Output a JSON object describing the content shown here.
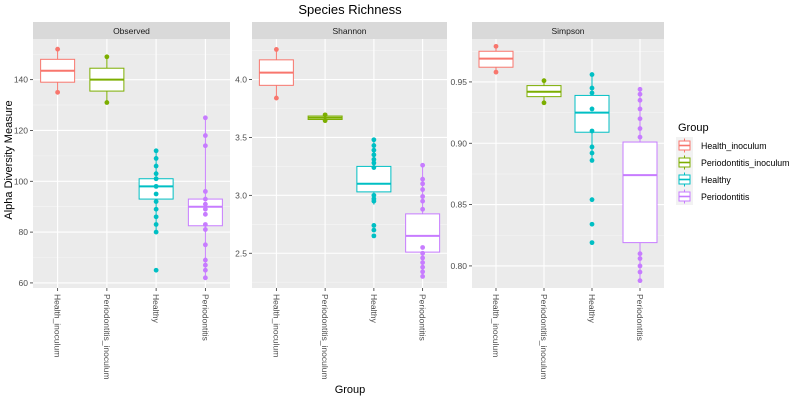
{
  "chart_data": {
    "type": "box",
    "title": "Species Richness",
    "xlabel": "Group",
    "ylabel": "Alpha Diversity Measure",
    "categories": [
      "Health_inoculum",
      "Periodontitis_inoculum",
      "Healthy",
      "Periodontitis"
    ],
    "legend": {
      "title": "Group",
      "placement": "right",
      "entries": [
        {
          "label": "Health_inoculum",
          "color": "#F8766D"
        },
        {
          "label": "Periodontitis_inoculum",
          "color": "#7CAE00"
        },
        {
          "label": "Healthy",
          "color": "#00BFC4"
        },
        {
          "label": "Periodontitis",
          "color": "#C77CFF"
        }
      ]
    },
    "grid": true,
    "panels": [
      {
        "name": "Observed",
        "ylim": [
          58,
          156
        ],
        "yticks": [
          60,
          80,
          100,
          120,
          140
        ],
        "boxes": [
          {
            "category": "Health_inoculum",
            "q1": 139,
            "median": 143.5,
            "q3": 148,
            "whisker_low": 135,
            "whisker_high": 152,
            "points": [
              152,
              135
            ]
          },
          {
            "category": "Periodontitis_inoculum",
            "q1": 135.5,
            "median": 140,
            "q3": 144.5,
            "whisker_low": 131,
            "whisker_high": 149,
            "points": [
              149,
              131
            ]
          },
          {
            "category": "Healthy",
            "q1": 93,
            "median": 98,
            "q3": 101,
            "whisker_low": 80,
            "whisker_high": 112,
            "points": [
              112,
              109,
              106,
              103,
              101,
              98,
              95,
              92,
              89,
              86,
              83,
              80,
              65
            ]
          },
          {
            "category": "Periodontitis",
            "q1": 82.5,
            "median": 90,
            "q3": 93,
            "whisker_low": 62,
            "whisker_high": 125,
            "points": [
              125,
              118,
              114,
              96,
              93,
              91,
              89,
              87,
              83,
              81,
              75,
              69,
              67,
              65,
              62
            ]
          }
        ]
      },
      {
        "name": "Shannon",
        "ylim": [
          2.2,
          4.35
        ],
        "yticks": [
          2.5,
          3.0,
          3.5,
          4.0
        ],
        "boxes": [
          {
            "category": "Health_inoculum",
            "q1": 3.95,
            "median": 4.06,
            "q3": 4.17,
            "whisker_low": 3.84,
            "whisker_high": 4.26,
            "points": [
              4.26,
              3.84
            ]
          },
          {
            "category": "Periodontitis_inoculum",
            "q1": 3.655,
            "median": 3.67,
            "q3": 3.685,
            "whisker_low": 3.645,
            "whisker_high": 3.695,
            "points": [
              3.695,
              3.645
            ]
          },
          {
            "category": "Healthy",
            "q1": 3.03,
            "median": 3.1,
            "q3": 3.25,
            "whisker_low": 2.92,
            "whisker_high": 3.48,
            "points": [
              3.48,
              3.43,
              3.39,
              3.35,
              3.31,
              3.28,
              3.24,
              3.0,
              2.97,
              2.95,
              2.74,
              2.7,
              2.65
            ]
          },
          {
            "category": "Periodontitis",
            "q1": 2.51,
            "median": 2.65,
            "q3": 2.84,
            "whisker_low": 2.3,
            "whisker_high": 3.26,
            "points": [
              3.26,
              3.14,
              3.1,
              3.05,
              2.99,
              2.95,
              2.88,
              2.55,
              2.5,
              2.46,
              2.42,
              2.38,
              2.34,
              2.3
            ]
          }
        ]
      },
      {
        "name": "Simpson",
        "ylim": [
          0.782,
          0.985
        ],
        "yticks": [
          0.8,
          0.85,
          0.9,
          0.95
        ],
        "boxes": [
          {
            "category": "Health_inoculum",
            "q1": 0.962,
            "median": 0.969,
            "q3": 0.975,
            "whisker_low": 0.958,
            "whisker_high": 0.979,
            "points": [
              0.979,
              0.958
            ]
          },
          {
            "category": "Periodontitis_inoculum",
            "q1": 0.938,
            "median": 0.942,
            "q3": 0.947,
            "whisker_low": 0.933,
            "whisker_high": 0.951,
            "points": [
              0.951,
              0.933
            ]
          },
          {
            "category": "Healthy",
            "q1": 0.909,
            "median": 0.925,
            "q3": 0.939,
            "whisker_low": 0.886,
            "whisker_high": 0.956,
            "points": [
              0.956,
              0.945,
              0.941,
              0.928,
              0.91,
              0.897,
              0.892,
              0.886,
              0.854,
              0.834,
              0.819
            ]
          },
          {
            "category": "Periodontitis",
            "q1": 0.819,
            "median": 0.874,
            "q3": 0.901,
            "whisker_low": 0.788,
            "whisker_high": 0.944,
            "points": [
              0.944,
              0.94,
              0.935,
              0.928,
              0.92,
              0.912,
              0.905,
              0.81,
              0.806,
              0.8,
              0.795,
              0.788
            ]
          }
        ]
      }
    ]
  }
}
